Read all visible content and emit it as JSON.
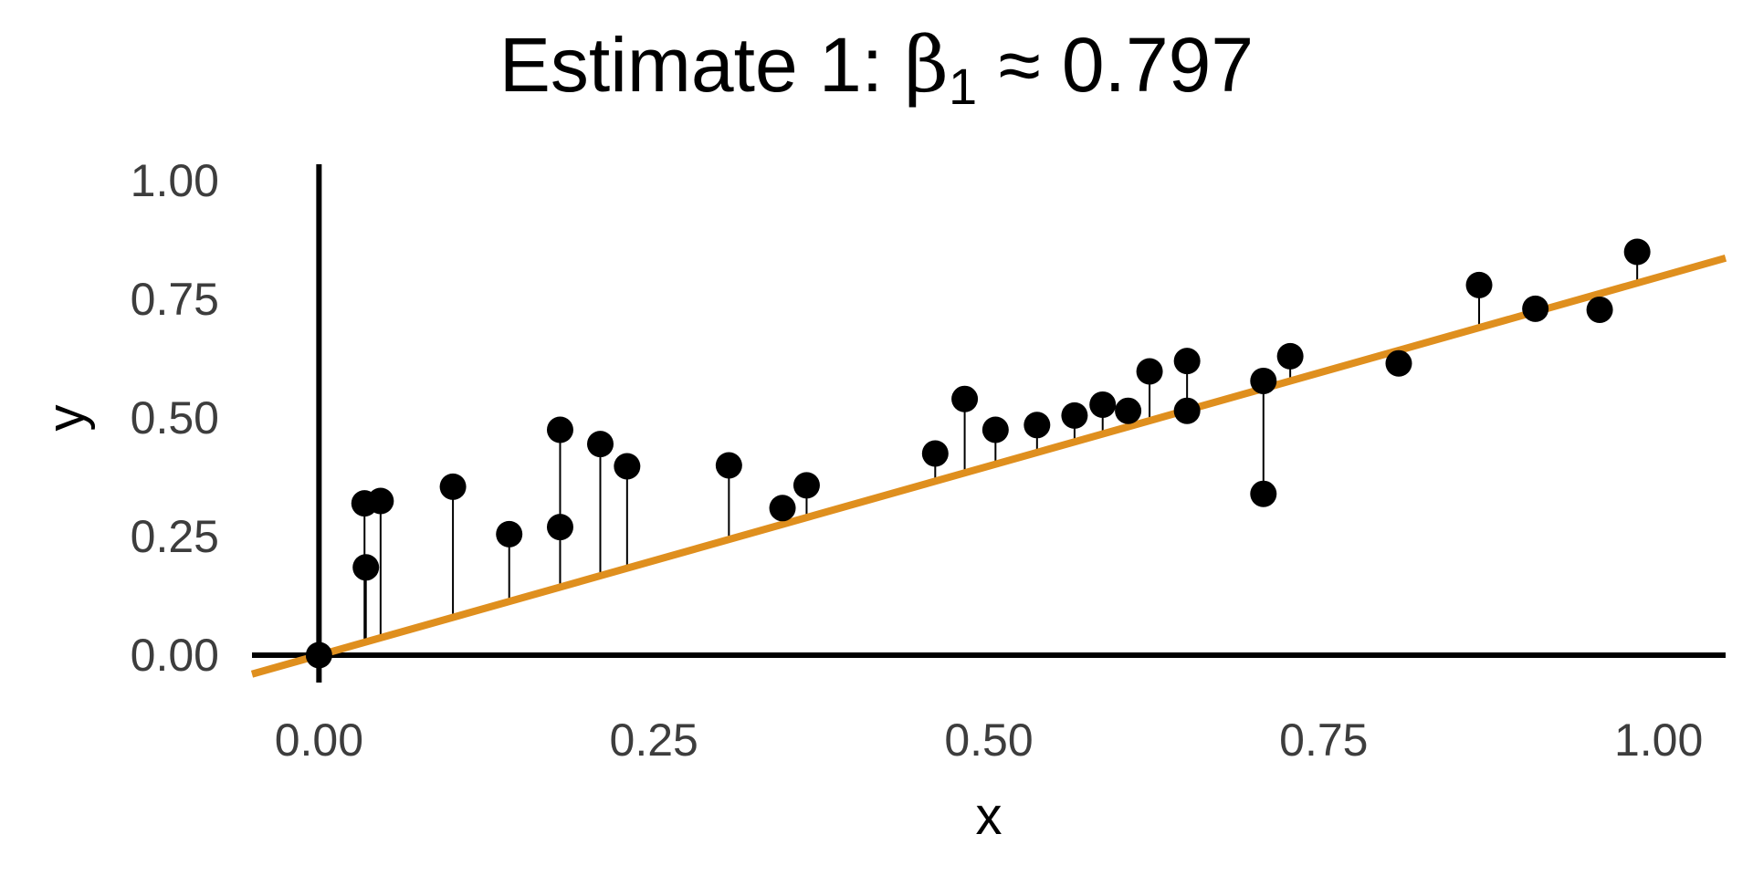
{
  "chart_data": {
    "type": "scatter",
    "title": "Estimate 1: β₁ ≈ 0.797",
    "title_parts": {
      "prefix": "Estimate 1: ",
      "symbol": "β",
      "subscript": "1",
      "suffix": " ≈ 0.797"
    },
    "xlabel": "x",
    "ylabel": "y",
    "xlim": [
      -0.05,
      1.05
    ],
    "ylim": [
      -0.05,
      1.05
    ],
    "x_ticks": [
      0,
      0.25,
      0.5,
      0.75,
      1
    ],
    "y_ticks": [
      0,
      0.25,
      0.5,
      0.75,
      1
    ],
    "x_tick_labels": [
      "0.00",
      "0.25",
      "0.50",
      "0.75",
      "1.00"
    ],
    "y_tick_labels": [
      "0.00",
      "0.25",
      "0.50",
      "0.75",
      "1.00"
    ],
    "grid": false,
    "fit_line": {
      "intercept": 0,
      "slope": 0.797,
      "color": "#DF8F1E"
    },
    "residual_color": "#000000",
    "point_color": "#000000",
    "points": [
      {
        "x": 0.0,
        "y": 0.0
      },
      {
        "x": 0.034,
        "y": 0.32
      },
      {
        "x": 0.035,
        "y": 0.185
      },
      {
        "x": 0.046,
        "y": 0.325
      },
      {
        "x": 0.1,
        "y": 0.355
      },
      {
        "x": 0.142,
        "y": 0.255
      },
      {
        "x": 0.18,
        "y": 0.475
      },
      {
        "x": 0.18,
        "y": 0.27
      },
      {
        "x": 0.21,
        "y": 0.445
      },
      {
        "x": 0.23,
        "y": 0.398
      },
      {
        "x": 0.306,
        "y": 0.4
      },
      {
        "x": 0.346,
        "y": 0.31
      },
      {
        "x": 0.364,
        "y": 0.358
      },
      {
        "x": 0.46,
        "y": 0.425
      },
      {
        "x": 0.482,
        "y": 0.54
      },
      {
        "x": 0.505,
        "y": 0.475
      },
      {
        "x": 0.536,
        "y": 0.485
      },
      {
        "x": 0.564,
        "y": 0.505
      },
      {
        "x": 0.585,
        "y": 0.528
      },
      {
        "x": 0.604,
        "y": 0.515
      },
      {
        "x": 0.62,
        "y": 0.598
      },
      {
        "x": 0.648,
        "y": 0.62
      },
      {
        "x": 0.648,
        "y": 0.515
      },
      {
        "x": 0.705,
        "y": 0.578
      },
      {
        "x": 0.705,
        "y": 0.34
      },
      {
        "x": 0.725,
        "y": 0.63
      },
      {
        "x": 0.806,
        "y": 0.615
      },
      {
        "x": 0.866,
        "y": 0.78
      },
      {
        "x": 0.908,
        "y": 0.73
      },
      {
        "x": 0.956,
        "y": 0.728
      },
      {
        "x": 0.984,
        "y": 0.85
      }
    ]
  }
}
